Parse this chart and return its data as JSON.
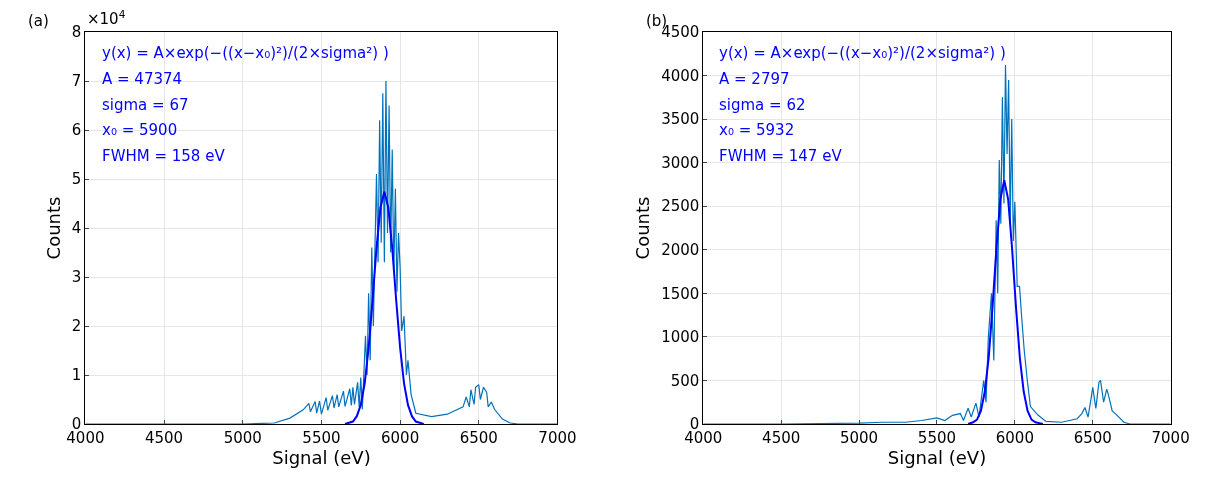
{
  "chart_data": [
    {
      "type": "line",
      "title": "(a)",
      "xlabel": "Signal (eV)",
      "ylabel": "Counts",
      "xlim": [
        4000,
        7000
      ],
      "xticks": [
        4000,
        4500,
        5000,
        5500,
        6000,
        6500,
        7000
      ],
      "ylim": [
        0,
        8
      ],
      "yticks": [
        0,
        1,
        2,
        3,
        4,
        5,
        6,
        7,
        8
      ],
      "grid": true,
      "annotations": [
        "×10$^{4}$",
        "y(x) = A×exp(−((x−x₀)²)/(2×sigma²) )",
        "A = 47374",
        "sigma = 67",
        "x₀ = 5900",
        "FWHM = 158 eV"
      ],
      "series": [
        {
          "color": "#0072bd",
          "x": [
            4000,
            4500,
            5000,
            5200,
            5300,
            5384,
            5420,
            5430,
            5460,
            5470,
            5488,
            5500,
            5530,
            5540,
            5570,
            5580,
            5600,
            5610,
            5640,
            5650,
            5680,
            5690,
            5700,
            5710,
            5730,
            5740,
            5750,
            5760,
            5780,
            5790,
            5800,
            5810,
            5820,
            5830,
            5850,
            5860,
            5870,
            5880,
            5890,
            5900,
            5910,
            5920,
            5930,
            5940,
            5950,
            5960,
            5970,
            5980,
            5990,
            6000,
            6010,
            6025,
            6040,
            6050,
            6070,
            6100,
            6200,
            6300,
            6400,
            6420,
            6440,
            6450,
            6470,
            6480,
            6500,
            6510,
            6530,
            6550,
            6560,
            6580,
            6600,
            6650,
            6700,
            6750,
            7000
          ],
          "values": [
            0,
            0,
            0,
            0.02,
            0.12,
            0.29,
            0.42,
            0.25,
            0.46,
            0.22,
            0.47,
            0.2,
            0.54,
            0.28,
            0.58,
            0.33,
            0.6,
            0.35,
            0.67,
            0.36,
            0.72,
            0.38,
            0.75,
            0.4,
            0.85,
            0.35,
            0.95,
            0.3,
            1.8,
            1.0,
            2.67,
            1.3,
            3.6,
            2.0,
            5.1,
            3.3,
            6.2,
            3.7,
            6.75,
            3.3,
            7.0,
            3.9,
            6.5,
            3.5,
            5.6,
            3.1,
            4.8,
            2.7,
            3.9,
            3.2,
            1.9,
            2.2,
            1.0,
            1.3,
            0.6,
            0.22,
            0.15,
            0.2,
            0.35,
            0.55,
            0.35,
            0.7,
            0.4,
            0.75,
            0.8,
            0.5,
            0.75,
            0.65,
            0.35,
            0.45,
            0.3,
            0.1,
            0.02,
            0,
            0
          ]
        },
        {
          "color": "#0000ff",
          "x": [
            5650,
            5700,
            5725,
            5750,
            5775,
            5800,
            5825,
            5850,
            5875,
            5900,
            5925,
            5950,
            5975,
            6000,
            6025,
            6050,
            6075,
            6100,
            6150
          ],
          "values": [
            0,
            0.05,
            0.16,
            0.39,
            0.83,
            1.56,
            2.53,
            3.59,
            4.42,
            4.74,
            4.42,
            3.59,
            2.53,
            1.56,
            0.83,
            0.39,
            0.16,
            0.05,
            0
          ]
        }
      ]
    },
    {
      "type": "line",
      "title": "(b)",
      "xlabel": "Signal (eV)",
      "ylabel": "Counts",
      "xlim": [
        4000,
        7000
      ],
      "xticks": [
        4000,
        4500,
        5000,
        5500,
        6000,
        6500,
        7000
      ],
      "ylim": [
        0,
        4500
      ],
      "yticks": [
        0,
        500,
        1000,
        1500,
        2000,
        2500,
        3000,
        3500,
        4000,
        4500
      ],
      "grid": true,
      "annotations": [
        "y(x) = A×exp(−((x−x₀)²)/(2×sigma²) )",
        "A = 2797",
        "sigma = 62",
        "x₀ = 5932",
        "FWHM = 147 eV"
      ],
      "series": [
        {
          "color": "#0072bd",
          "x": [
            4000,
            4500,
            5000,
            5150,
            5300,
            5400,
            5500,
            5550,
            5600,
            5650,
            5670,
            5700,
            5720,
            5750,
            5770,
            5800,
            5815,
            5830,
            5850,
            5865,
            5880,
            5890,
            5900,
            5910,
            5920,
            5930,
            5940,
            5950,
            5960,
            5970,
            5980,
            5990,
            6000,
            6015,
            6030,
            6045,
            6060,
            6080,
            6100,
            6150,
            6200,
            6300,
            6400,
            6430,
            6450,
            6470,
            6490,
            6500,
            6520,
            6540,
            6550,
            6570,
            6590,
            6600,
            6625,
            6650,
            6700,
            6740,
            7000
          ],
          "values": [
            0,
            0,
            10,
            20,
            20,
            40,
            70,
            40,
            100,
            120,
            40,
            180,
            80,
            240,
            80,
            500,
            250,
            1000,
            1500,
            730,
            2340,
            1500,
            3030,
            2300,
            3750,
            2530,
            4120,
            3100,
            3950,
            2300,
            3500,
            2100,
            2550,
            1580,
            1580,
            1200,
            850,
            500,
            200,
            100,
            30,
            20,
            60,
            120,
            190,
            80,
            300,
            420,
            180,
            480,
            500,
            250,
            400,
            340,
            150,
            110,
            20,
            0,
            0
          ]
        },
        {
          "color": "#0000ff",
          "x": [
            5700,
            5732,
            5757,
            5782,
            5807,
            5832,
            5857,
            5882,
            5907,
            5932,
            5957,
            5982,
            6007,
            6032,
            6057,
            6082,
            6107,
            6132,
            6180
          ],
          "values": [
            0,
            20,
            50,
            150,
            370,
            760,
            1350,
            2020,
            2580,
            2800,
            2580,
            2020,
            1350,
            760,
            370,
            150,
            50,
            20,
            0
          ]
        }
      ]
    }
  ]
}
